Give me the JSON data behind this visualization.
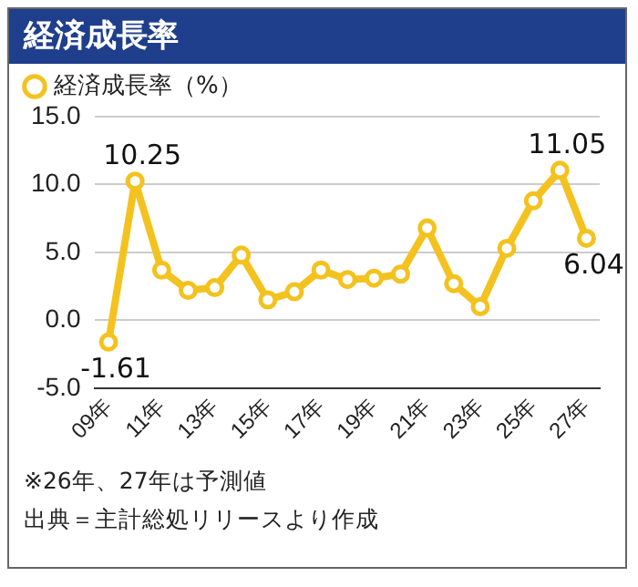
{
  "chart_data": {
    "type": "line",
    "title": "経済成長率",
    "categories": [
      "09年",
      null,
      "11年",
      null,
      "13年",
      null,
      "15年",
      null,
      "17年",
      null,
      "19年",
      null,
      "21年",
      null,
      "23年",
      null,
      "25年",
      null,
      "27年"
    ],
    "series": [
      {
        "name": "経済成長率（%）",
        "color": "#f4c21f",
        "values": [
          -1.61,
          10.25,
          3.7,
          2.2,
          2.4,
          4.8,
          1.5,
          2.1,
          3.7,
          3.0,
          3.1,
          3.4,
          6.8,
          2.7,
          1.0,
          5.3,
          8.8,
          11.05,
          6.04
        ],
        "value_labels": [
          "-1.61",
          "10.25",
          null,
          null,
          null,
          null,
          null,
          null,
          null,
          null,
          null,
          null,
          null,
          null,
          null,
          null,
          null,
          "11.05",
          "6.04"
        ]
      }
    ],
    "ylim": [
      -5,
      15
    ],
    "yticks": [
      {
        "value": -5,
        "label": "-5.0"
      },
      {
        "value": 0,
        "label": "0.0"
      },
      {
        "value": 5,
        "label": "5.0"
      },
      {
        "value": 10,
        "label": "10.0"
      },
      {
        "value": 15,
        "label": "15.0"
      }
    ],
    "grid": "y",
    "legend": "top left",
    "marker": "circle",
    "line_style": "solid",
    "annotations": [
      "※26年、27年は予測値",
      "出典＝主計総処リリースより作成"
    ]
  }
}
